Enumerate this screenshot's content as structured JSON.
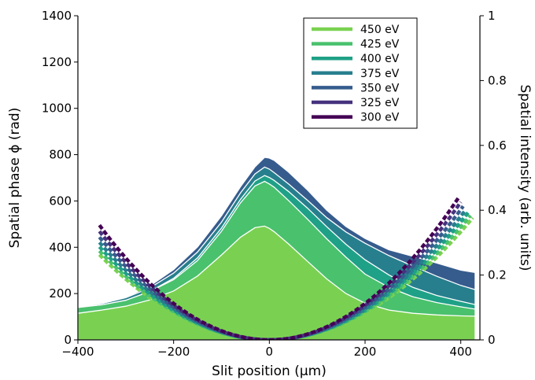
{
  "chart_data": {
    "type": "area",
    "xlabel": "Slit position (μm)",
    "ylabel": "Spatial phase ϕ (rad)",
    "y2label": "Spatial intensity (arb. units)",
    "xlim": [
      -400,
      440
    ],
    "ylim": [
      0,
      1400
    ],
    "y2lim": [
      0,
      1
    ],
    "xticks": [
      -400,
      -200,
      0,
      200,
      400
    ],
    "xtick_labels": [
      "−400",
      "−200",
      "0",
      "200",
      "400"
    ],
    "yticks": [
      0,
      200,
      400,
      600,
      800,
      1000,
      1200,
      1400
    ],
    "y2ticks": [
      0,
      0.2,
      0.4,
      0.6,
      0.8,
      1
    ],
    "y2tick_labels": [
      "0",
      "0.2",
      "0.4",
      "0.6",
      "0.8",
      "1"
    ],
    "grid": false,
    "legend_position": "top-right",
    "intensity_x": [
      -400,
      -350,
      -300,
      -250,
      -200,
      -150,
      -100,
      -60,
      -30,
      -10,
      0,
      10,
      40,
      80,
      120,
      160,
      200,
      250,
      300,
      350,
      400,
      430
    ],
    "series": [
      {
        "name": "300 eV",
        "color": "#440154",
        "phase_x_range": [
          -355,
          395
        ],
        "phase_curvature": 0.00393,
        "intensity": [
          0.1,
          0.112,
          0.132,
          0.166,
          0.217,
          0.287,
          0.383,
          0.473,
          0.534,
          0.563,
          0.561,
          0.554,
          0.518,
          0.462,
          0.4,
          0.35,
          0.313,
          0.278,
          0.258,
          0.237,
          0.215,
          0.208
        ]
      },
      {
        "name": "325 eV",
        "color": "#46327e",
        "phase_x_range": [
          -355,
          400
        ],
        "phase_curvature": 0.00372,
        "intensity": [
          0.1,
          0.112,
          0.132,
          0.166,
          0.217,
          0.287,
          0.383,
          0.473,
          0.534,
          0.563,
          0.561,
          0.554,
          0.518,
          0.462,
          0.4,
          0.35,
          0.313,
          0.278,
          0.258,
          0.237,
          0.215,
          0.208
        ]
      },
      {
        "name": "350 eV",
        "color": "#365c8d",
        "phase_x_range": [
          -355,
          405
        ],
        "phase_curvature": 0.00352,
        "intensity": [
          0.1,
          0.112,
          0.132,
          0.166,
          0.217,
          0.287,
          0.383,
          0.473,
          0.534,
          0.563,
          0.561,
          0.554,
          0.518,
          0.462,
          0.4,
          0.35,
          0.313,
          0.278,
          0.258,
          0.237,
          0.215,
          0.208
        ]
      },
      {
        "name": "375 eV",
        "color": "#277f8e",
        "phase_x_range": [
          -355,
          410
        ],
        "phase_curvature": 0.00334,
        "intensity": [
          0.102,
          0.112,
          0.13,
          0.16,
          0.206,
          0.271,
          0.363,
          0.454,
          0.512,
          0.533,
          0.527,
          0.516,
          0.481,
          0.43,
          0.377,
          0.333,
          0.298,
          0.26,
          0.228,
          0.196,
          0.168,
          0.155
        ]
      },
      {
        "name": "400 eV",
        "color": "#1fa187",
        "phase_x_range": [
          -355,
          415
        ],
        "phase_curvature": 0.00319,
        "intensity": [
          0.1,
          0.108,
          0.122,
          0.149,
          0.19,
          0.253,
          0.345,
          0.434,
          0.49,
          0.507,
          0.501,
          0.492,
          0.458,
          0.406,
          0.349,
          0.295,
          0.247,
          0.2,
          0.162,
          0.137,
          0.119,
          0.109
        ]
      },
      {
        "name": "425 eV",
        "color": "#4ac16d",
        "phase_x_range": [
          -355,
          420
        ],
        "phase_curvature": 0.00305,
        "intensity": [
          0.1,
          0.108,
          0.122,
          0.149,
          0.186,
          0.245,
          0.335,
          0.423,
          0.475,
          0.489,
          0.481,
          0.471,
          0.43,
          0.372,
          0.312,
          0.255,
          0.203,
          0.162,
          0.133,
          0.115,
          0.102,
          0.095
        ]
      },
      {
        "name": "450 eV",
        "color": "#7ad151",
        "phase_x_range": [
          -355,
          425
        ],
        "phase_curvature": 0.00292,
        "intensity": [
          0.082,
          0.092,
          0.104,
          0.123,
          0.151,
          0.197,
          0.262,
          0.317,
          0.346,
          0.351,
          0.344,
          0.334,
          0.296,
          0.242,
          0.188,
          0.143,
          0.113,
          0.092,
          0.082,
          0.077,
          0.074,
          0.073
        ]
      }
    ]
  }
}
